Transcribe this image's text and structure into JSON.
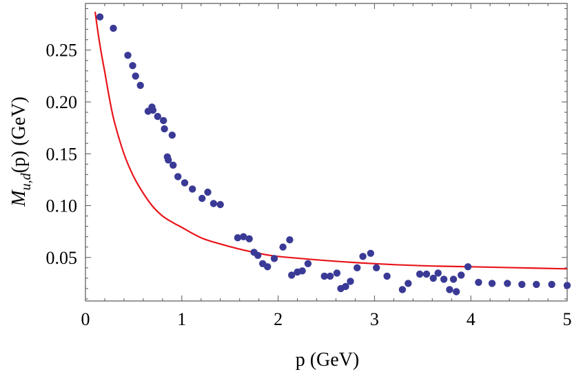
{
  "chart_data": {
    "type": "scatter",
    "xlabel": "p (GeV)",
    "ylabel": {
      "symbol": "M",
      "subscript": "u,d",
      "rest": "(p) (GeV)"
    },
    "xlim": [
      0,
      5
    ],
    "ylim": [
      0.008,
      0.295
    ],
    "x_ticks": [
      0,
      1,
      2,
      3,
      4,
      5
    ],
    "x_tick_labels": [
      "0",
      "1",
      "2",
      "3",
      "4",
      "5"
    ],
    "y_ticks": [
      0.05,
      0.1,
      0.15,
      0.2,
      0.25
    ],
    "y_tick_labels": [
      "0.05",
      "0.10",
      "0.15",
      "0.20",
      "0.25"
    ],
    "grid": false,
    "colors": {
      "points": "#3a3a96",
      "curve": "#e8141a",
      "frame": "#555555"
    },
    "series": [
      {
        "kind": "points",
        "x": [
          0.15,
          0.29,
          0.44,
          0.49,
          0.52,
          0.57,
          0.65,
          0.69,
          0.7,
          0.75,
          0.81,
          0.82,
          0.85,
          0.86,
          0.9,
          0.91,
          0.96,
          1.03,
          1.11,
          1.21,
          1.27,
          1.33,
          1.4,
          1.58,
          1.64,
          1.7,
          1.75,
          1.79,
          1.84,
          1.89,
          1.96,
          2.05,
          2.12,
          2.14,
          2.2,
          2.25,
          2.31,
          2.48,
          2.54,
          2.61,
          2.65,
          2.7,
          2.75,
          2.82,
          2.88,
          2.96,
          3.02,
          3.13,
          3.29,
          3.35,
          3.47,
          3.54,
          3.61,
          3.66,
          3.72,
          3.78,
          3.82,
          3.85,
          3.9,
          3.97,
          4.08,
          4.22,
          4.38,
          4.53,
          4.68,
          4.84,
          5.0
        ],
        "y": [
          0.282,
          0.271,
          0.245,
          0.235,
          0.225,
          0.216,
          0.191,
          0.195,
          0.192,
          0.186,
          0.182,
          0.174,
          0.147,
          0.144,
          0.168,
          0.139,
          0.128,
          0.122,
          0.116,
          0.107,
          0.113,
          0.102,
          0.101,
          0.069,
          0.07,
          0.068,
          0.055,
          0.052,
          0.044,
          0.041,
          0.049,
          0.06,
          0.067,
          0.033,
          0.036,
          0.037,
          0.044,
          0.032,
          0.032,
          0.035,
          0.02,
          0.022,
          0.027,
          0.04,
          0.051,
          0.054,
          0.04,
          0.032,
          0.019,
          0.025,
          0.034,
          0.034,
          0.03,
          0.035,
          0.029,
          0.019,
          0.029,
          0.017,
          0.033,
          0.041,
          0.026,
          0.025,
          0.025,
          0.024,
          0.024,
          0.024,
          0.023
        ]
      },
      {
        "kind": "curve",
        "x": [
          0.1,
          0.15,
          0.2,
          0.25,
          0.3,
          0.4,
          0.5,
          0.6,
          0.7,
          0.8,
          0.9,
          1.0,
          1.2,
          1.4,
          1.6,
          1.8,
          2.0,
          2.5,
          3.0,
          3.5,
          4.0,
          4.5,
          5.0
        ],
        "y": [
          0.287,
          0.255,
          0.229,
          0.203,
          0.181,
          0.15,
          0.128,
          0.112,
          0.099,
          0.09,
          0.084,
          0.079,
          0.069,
          0.063,
          0.058,
          0.054,
          0.051,
          0.047,
          0.044,
          0.042,
          0.041,
          0.04,
          0.039
        ]
      }
    ]
  }
}
